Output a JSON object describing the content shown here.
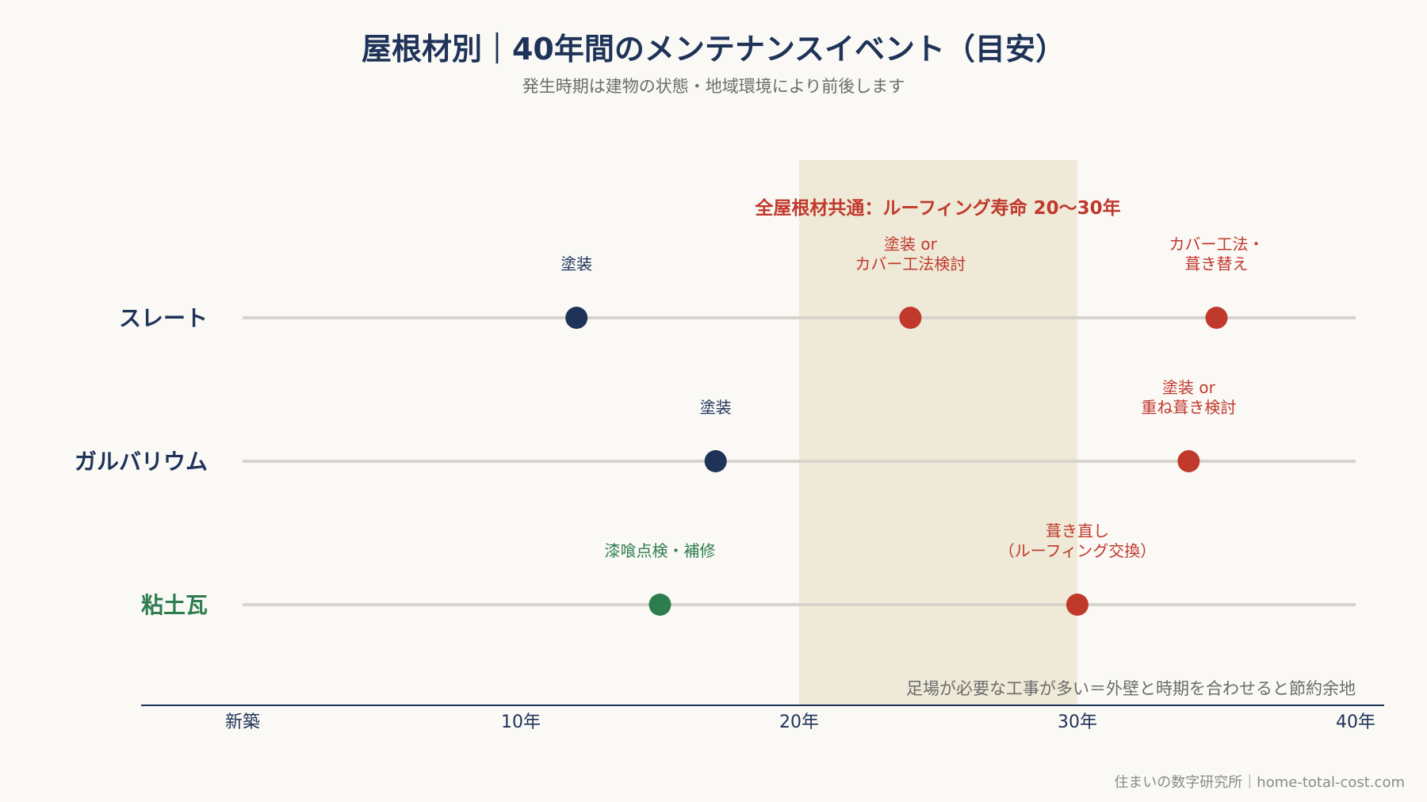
{
  "title": "屋根材別｜40年間のメンテナンスイベント（目安）",
  "subtitle": "発生時期は建物の状態・地域環境により前後します",
  "footer": "住まいの数字研究所｜home-total-cost.com",
  "colors": {
    "navy": "#1f3358",
    "red": "#c0392b",
    "green": "#2e7d4f",
    "band": "#efe9d8",
    "lane": "#d6d4cc",
    "axis": "#1f3358",
    "muted": "#6b6b6b",
    "background": "#faf9f6"
  },
  "chart_data": {
    "type": "scatter",
    "title": "屋根材別｜40年間のメンテナンスイベント（目安）",
    "subtitle": "発生時期は建物の状態・地域環境により前後します",
    "xlabel": "",
    "ylabel": "",
    "xlim": [
      0,
      40
    ],
    "x_ticks": [
      {
        "value": 0,
        "label": "新築"
      },
      {
        "value": 10,
        "label": "10年"
      },
      {
        "value": 20,
        "label": "20年"
      },
      {
        "value": 30,
        "label": "30年"
      },
      {
        "value": 40,
        "label": "40年"
      }
    ],
    "grid": false,
    "band": {
      "from": 20,
      "to": 30,
      "label": "全屋根材共通：ルーフィング寿命 20〜30年"
    },
    "note": "足場が必要な工事が多い＝外壁と時期を合わせると節約余地",
    "series": [
      {
        "name": "スレート",
        "label_color": "navy",
        "events": [
          {
            "x": 12,
            "lines": [
              "塗装"
            ],
            "color": "navy"
          },
          {
            "x": 24,
            "lines": [
              "塗装 or",
              "カバー工法検討"
            ],
            "color": "red"
          },
          {
            "x": 35,
            "lines": [
              "カバー工法・",
              "葺き替え"
            ],
            "color": "red"
          }
        ]
      },
      {
        "name": "ガルバリウム",
        "label_color": "navy",
        "events": [
          {
            "x": 17,
            "lines": [
              "塗装"
            ],
            "color": "navy"
          },
          {
            "x": 34,
            "lines": [
              "塗装 or",
              "重ね葺き検討"
            ],
            "color": "red"
          }
        ]
      },
      {
        "name": "粘土瓦",
        "label_color": "green",
        "events": [
          {
            "x": 15,
            "lines": [
              "漆喰点検・補修"
            ],
            "color": "green"
          },
          {
            "x": 30,
            "lines": [
              "葺き直し",
              "（ルーフィング交換）"
            ],
            "color": "red"
          }
        ]
      }
    ]
  }
}
